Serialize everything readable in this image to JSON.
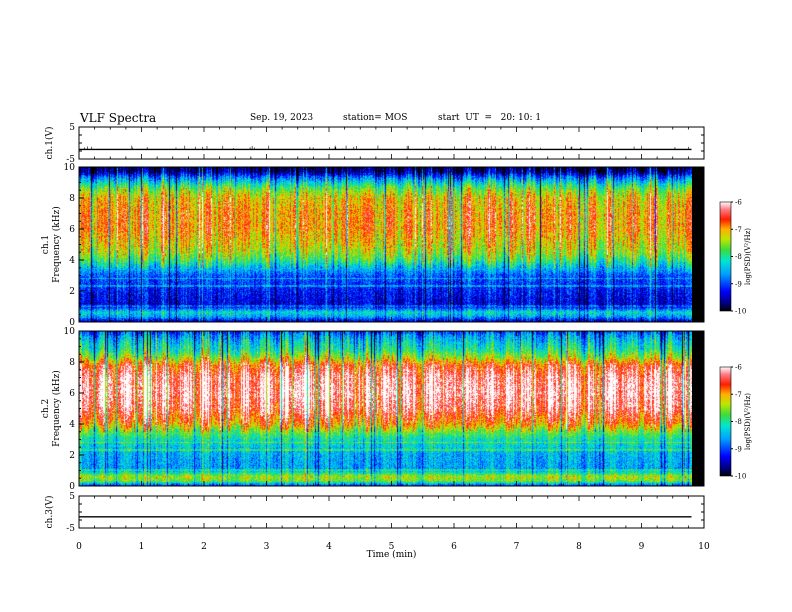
{
  "header": {
    "title": "VLF Spectra",
    "date": "Sep. 19, 2023",
    "station": "station= MOS",
    "start_ut": "start  UT  =   20: 10: 1"
  },
  "colorbar": {
    "label": "log(PSD)(V²/Hz)",
    "ticks": [
      "-6",
      "-7",
      "-8",
      "-9",
      "-10"
    ],
    "range": [
      -10,
      -6
    ]
  },
  "chart_data": [
    {
      "type": "line",
      "name": "ch.1(V)",
      "ylabel": "ch.1(V)",
      "ylim": [
        -5,
        5
      ],
      "yticks": [
        "5",
        "-5"
      ],
      "xlim": [
        0,
        10
      ],
      "series": [
        {
          "x": [
            0,
            9.8
          ],
          "values": [
            -2,
            -2
          ]
        }
      ],
      "note_visual": "flat trace near -2 V with small spikes"
    },
    {
      "type": "heatmap",
      "name": "ch.1 spectrogram",
      "ylabel": "ch.1 Frequency (kHz)",
      "ylim": [
        0,
        10
      ],
      "yticks": [
        "0",
        "2",
        "4",
        "6",
        "8",
        "10"
      ],
      "xlim": [
        0,
        10
      ],
      "data_extent_min": 9.8,
      "color_scale": "log(PSD)",
      "vrange": [
        -10,
        -6
      ],
      "profile": {
        "freq_khz": [
          0,
          0.3,
          0.6,
          1,
          2,
          3,
          3.5,
          4,
          4.5,
          5,
          6,
          7,
          8,
          8.6,
          9,
          9.4,
          9.7,
          10
        ],
        "log_psd": [
          -9.5,
          -8.6,
          -8.2,
          -9.4,
          -9.2,
          -8.9,
          -8.4,
          -7.8,
          -7.4,
          -7.2,
          -6.9,
          -6.9,
          -7.1,
          -7.6,
          -8.2,
          -8.9,
          -9.6,
          -9.8
        ]
      }
    },
    {
      "type": "heatmap",
      "name": "ch.2 spectrogram",
      "ylabel": "ch.2 Frequency (kHz)",
      "ylim": [
        0,
        10
      ],
      "yticks": [
        "0",
        "2",
        "4",
        "6",
        "8",
        "10"
      ],
      "xlim": [
        0,
        10
      ],
      "data_extent_min": 9.8,
      "color_scale": "log(PSD)",
      "vrange": [
        -10,
        -6
      ],
      "profile": {
        "freq_khz": [
          0,
          0.3,
          0.6,
          1,
          2,
          3,
          3.5,
          4,
          5,
          6,
          7,
          7.8,
          8.3,
          8.8,
          9.3,
          9.7,
          10
        ],
        "log_psd": [
          -9.0,
          -7.6,
          -7.4,
          -8.6,
          -8.5,
          -8.1,
          -7.6,
          -6.9,
          -6.3,
          -6.1,
          -6.2,
          -6.6,
          -7.4,
          -8.0,
          -8.3,
          -8.6,
          -9.0
        ]
      }
    },
    {
      "type": "line",
      "name": "ch.3(V)",
      "ylabel": "ch.3(V)",
      "ylim": [
        -5,
        5
      ],
      "yticks": [
        "5",
        "-5"
      ],
      "xlim": [
        0,
        10
      ],
      "series": [
        {
          "x": [
            0,
            9.8
          ],
          "values": [
            -1.5,
            -1.5
          ]
        }
      ],
      "xticks": [
        "0",
        "1",
        "2",
        "3",
        "4",
        "5",
        "6",
        "7",
        "8",
        "9",
        "10"
      ],
      "xlabel": "Time  (min)"
    }
  ]
}
